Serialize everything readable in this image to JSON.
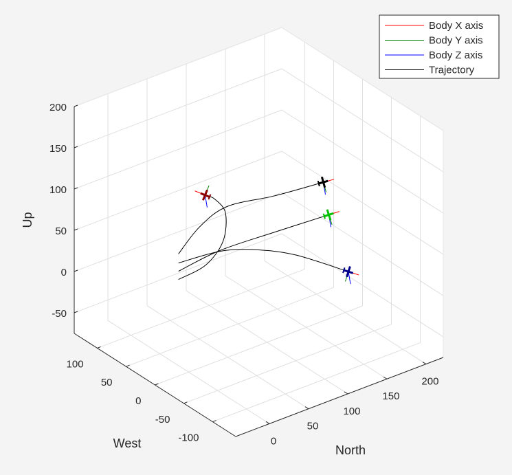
{
  "chart_data": {
    "type": "line",
    "projection": "3d",
    "xlabel": "North",
    "ylabel": "West",
    "zlabel": "Up",
    "xlim": [
      -43,
      222
    ],
    "ylim": [
      -140,
      140
    ],
    "zlim": [
      -75,
      200
    ],
    "xticks": [
      0,
      50,
      100,
      150,
      200
    ],
    "yticks": [
      -100,
      -50,
      0,
      50,
      100
    ],
    "zticks": [
      -50,
      0,
      50,
      100,
      150,
      200
    ],
    "grid": true,
    "legend_position": "top-right",
    "legend": [
      {
        "label": "Body X axis",
        "color": "#ff0000"
      },
      {
        "label": "Body Y axis",
        "color": "#008000"
      },
      {
        "label": "Body Z axis",
        "color": "#0000ff"
      },
      {
        "label": "Trajectory",
        "color": "#000000"
      }
    ],
    "trajectories": [
      {
        "aircraft_color": "#8b0000",
        "points": [
          [
            -13,
            0,
            42
          ],
          [
            22,
            0,
            47
          ],
          [
            44,
            0,
            68
          ],
          [
            47,
            0,
            101
          ],
          [
            33,
            0,
            123
          ],
          [
            21,
            0,
            132
          ]
        ]
      },
      {
        "aircraft_color": "#000000",
        "points": [
          [
            -13,
            0,
            73
          ],
          [
            14,
            0,
            96
          ],
          [
            49,
            0,
            108
          ],
          [
            110,
            0,
            99
          ],
          [
            172,
            0,
            93
          ]
        ]
      },
      {
        "aircraft_color": "#00c000",
        "points": [
          [
            -13,
            0,
            52
          ],
          [
            40,
            0,
            58
          ],
          [
            110,
            0,
            55
          ],
          [
            179,
            0,
            51
          ]
        ]
      },
      {
        "aircraft_color": "#00008b",
        "points": [
          [
            -13,
            0,
            62
          ],
          [
            40,
            0,
            57
          ],
          [
            84,
            0,
            43
          ],
          [
            136,
            0,
            18
          ],
          [
            204,
            0,
            -27
          ]
        ]
      }
    ]
  }
}
